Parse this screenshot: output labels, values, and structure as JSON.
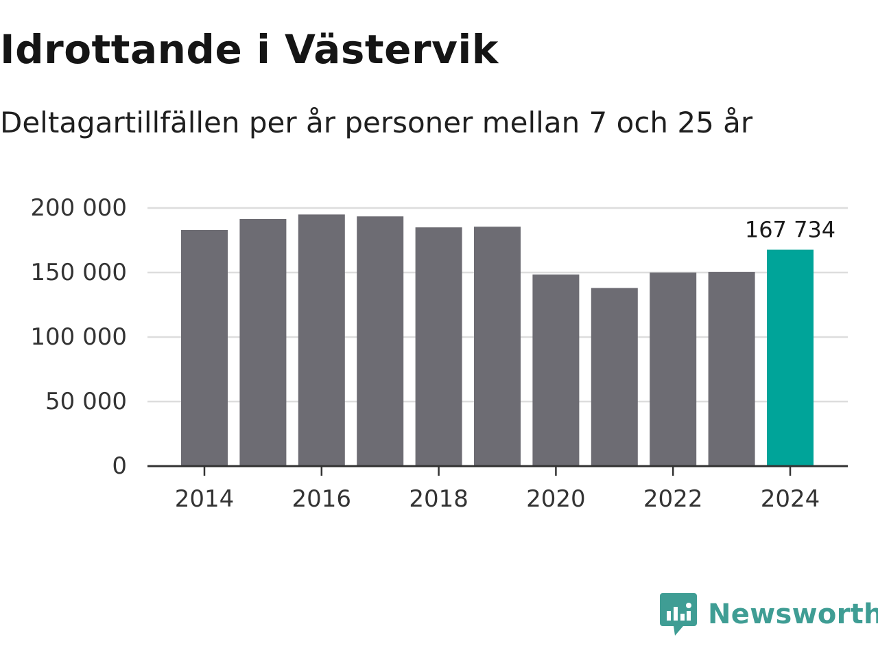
{
  "header": {
    "title": "Idrottande i Västervik",
    "subtitle": "Deltagartillfällen per år personer mellan 7 och 25 år"
  },
  "chart_data": {
    "type": "bar",
    "title": "Idrottande i Västervik",
    "subtitle": "Deltagartillfällen per år personer mellan 7 och 25 år",
    "xlabel": "",
    "ylabel": "",
    "categories": [
      "2014",
      "2015",
      "2016",
      "2017",
      "2018",
      "2019",
      "2020",
      "2021",
      "2022",
      "2023",
      "2024"
    ],
    "values": [
      183000,
      191500,
      195000,
      193500,
      185000,
      185500,
      148500,
      138000,
      150000,
      150500,
      167734
    ],
    "highlight_index": 10,
    "highlight_label": "167 734",
    "x_tick_labels": [
      "2014",
      "2016",
      "2018",
      "2020",
      "2022",
      "2024"
    ],
    "y_ticks": [
      0,
      50000,
      100000,
      150000,
      200000
    ],
    "y_tick_labels": [
      "0",
      "50 000",
      "100 000",
      "150 000",
      "200 000"
    ],
    "ylim": [
      0,
      200000
    ],
    "grid": true,
    "colors": {
      "bar": "#6d6c73",
      "highlight": "#00a499",
      "grid": "#dddddd",
      "axis": "#333333"
    }
  },
  "branding": {
    "name": "Newsworthy",
    "icon": "newsworthy-logo-icon",
    "color": "#3f9d94"
  }
}
